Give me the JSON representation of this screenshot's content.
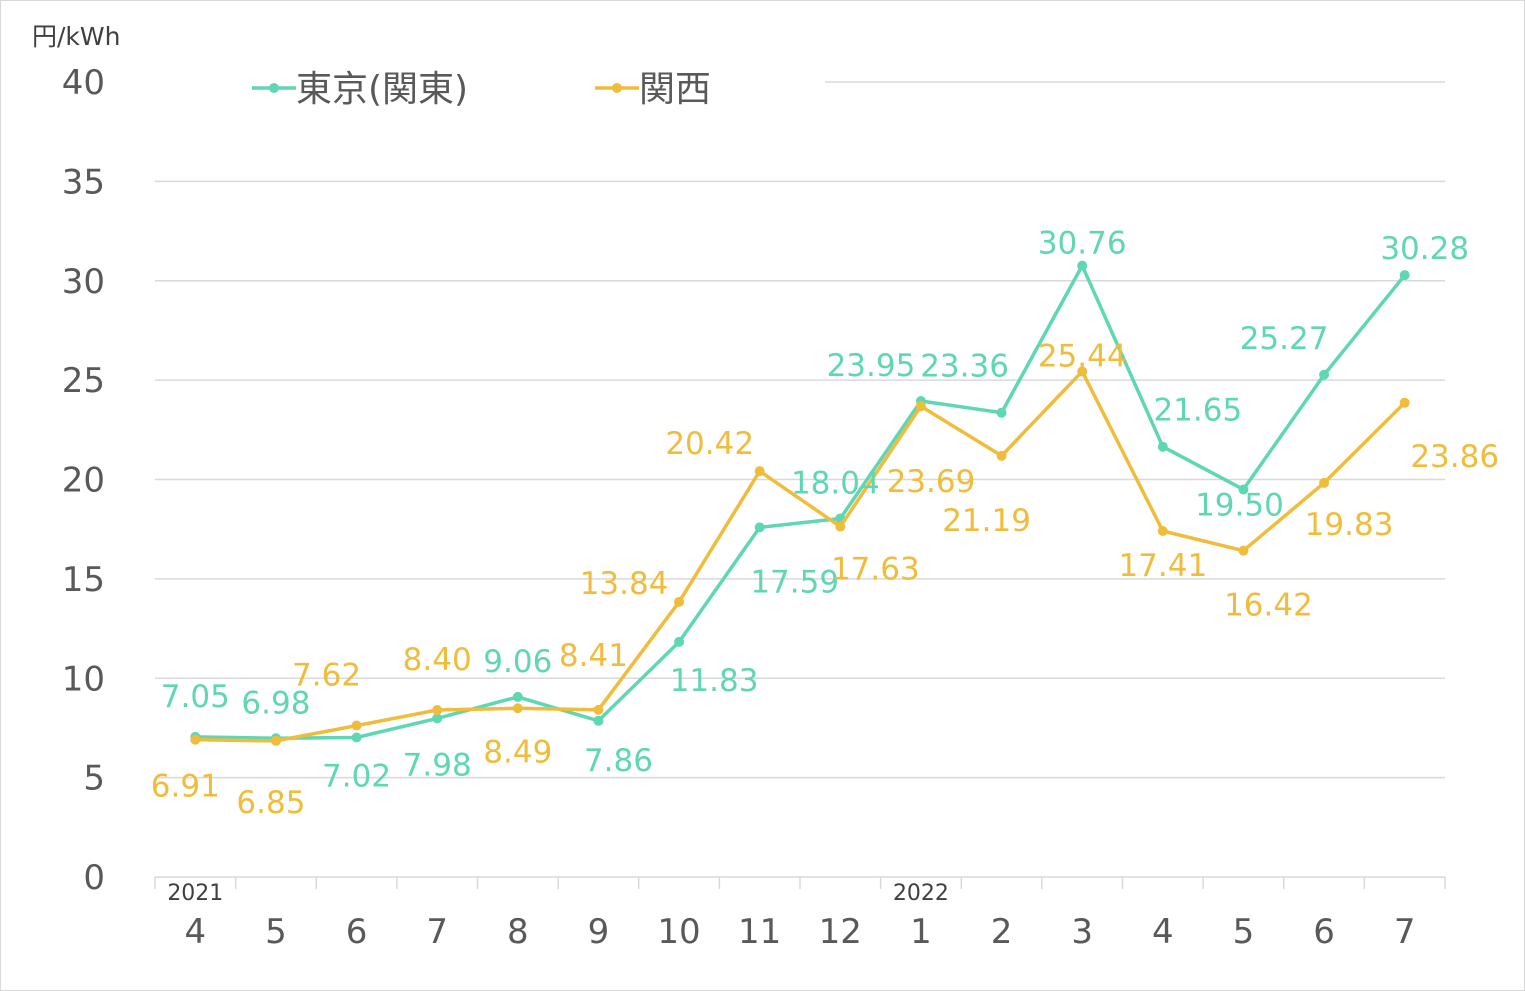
{
  "chart_data": {
    "type": "line",
    "unit_label": "円/kWh",
    "categories": [
      "4",
      "5",
      "6",
      "7",
      "8",
      "9",
      "10",
      "11",
      "12",
      "1",
      "2",
      "3",
      "4",
      "5",
      "6",
      "7"
    ],
    "year_labels": [
      {
        "index": 0,
        "label": "2021"
      },
      {
        "index": 9,
        "label": "2022"
      }
    ],
    "ylim": [
      0,
      40
    ],
    "yticks": [
      0,
      5,
      10,
      15,
      20,
      25,
      30,
      35,
      40
    ],
    "grid": true,
    "legend_position": "top",
    "series": [
      {
        "name": "東京(関東)",
        "color": "#5fd6b4",
        "values": [
          7.05,
          6.98,
          7.02,
          7.98,
          9.06,
          7.86,
          11.83,
          17.59,
          18.04,
          23.95,
          23.36,
          30.76,
          21.65,
          19.5,
          25.27,
          30.28
        ],
        "labels": [
          "7.05",
          "6.98",
          "7.02",
          "7.98",
          "9.06",
          "7.86",
          "11.83",
          "17.59",
          "18.04",
          "23.95",
          "23.36",
          "30.76",
          "21.65",
          "19.50",
          "25.27",
          "30.28"
        ]
      },
      {
        "name": "関西",
        "color": "#f0bc3c",
        "values": [
          6.91,
          6.85,
          7.62,
          8.4,
          8.49,
          8.41,
          13.84,
          20.42,
          17.63,
          23.69,
          21.19,
          25.44,
          17.41,
          16.42,
          19.83,
          23.86
        ],
        "labels": [
          "6.91",
          "6.85",
          "7.62",
          "8.40",
          "8.49",
          "8.41",
          "13.84",
          "20.42",
          "17.63",
          "23.69",
          "21.19",
          "25.44",
          "17.41",
          "16.42",
          "19.83",
          "23.86"
        ]
      }
    ]
  }
}
